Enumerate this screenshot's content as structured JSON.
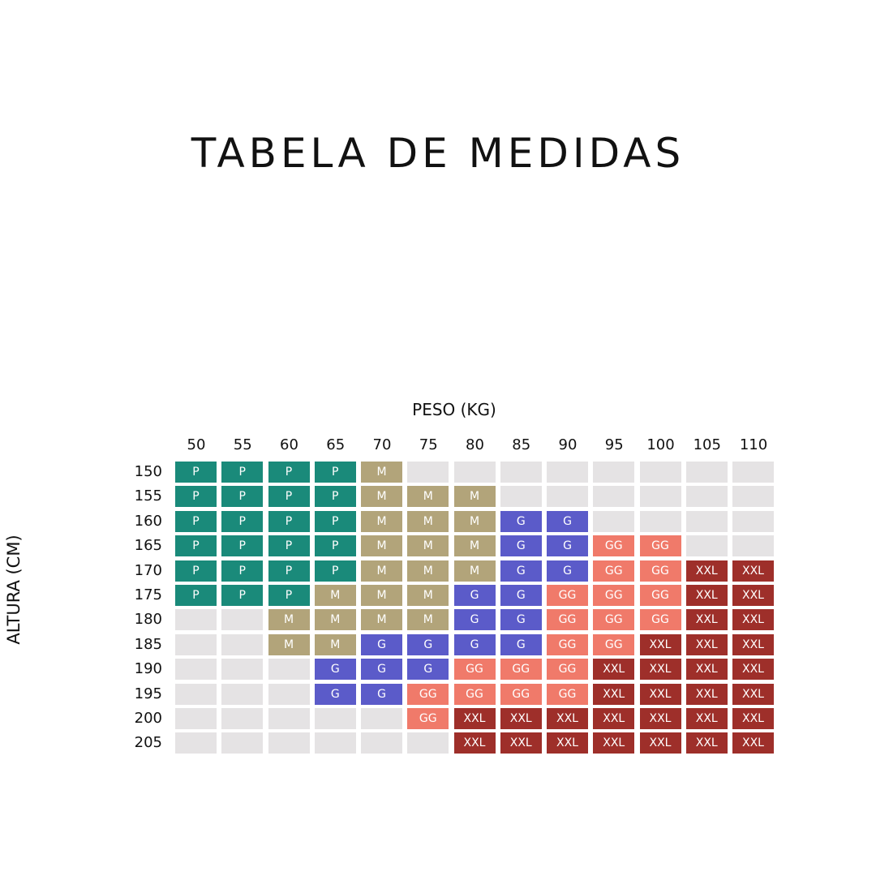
{
  "title": "TABELA DE MEDIDAS",
  "chart_data": {
    "type": "table",
    "xlabel": "PESO (KG)",
    "ylabel": "ALTURA (CM)",
    "x": [
      "50",
      "55",
      "60",
      "65",
      "70",
      "75",
      "80",
      "85",
      "90",
      "95",
      "100",
      "105",
      "110"
    ],
    "y": [
      "150",
      "155",
      "160",
      "165",
      "170",
      "175",
      "180",
      "185",
      "190",
      "195",
      "200",
      "205"
    ],
    "cells": [
      [
        "P",
        "P",
        "P",
        "P",
        "M",
        "",
        "",
        "",
        "",
        "",
        "",
        "",
        ""
      ],
      [
        "P",
        "P",
        "P",
        "P",
        "M",
        "M",
        "M",
        "",
        "",
        "",
        "",
        "",
        ""
      ],
      [
        "P",
        "P",
        "P",
        "P",
        "M",
        "M",
        "M",
        "G",
        "G",
        "",
        "",
        "",
        ""
      ],
      [
        "P",
        "P",
        "P",
        "P",
        "M",
        "M",
        "M",
        "G",
        "G",
        "GG",
        "GG",
        "",
        ""
      ],
      [
        "P",
        "P",
        "P",
        "P",
        "M",
        "M",
        "M",
        "G",
        "G",
        "GG",
        "GG",
        "XXL",
        "XXL"
      ],
      [
        "P",
        "P",
        "P",
        "M",
        "M",
        "M",
        "G",
        "G",
        "GG",
        "GG",
        "GG",
        "XXL",
        "XXL"
      ],
      [
        "",
        "",
        "M",
        "M",
        "M",
        "M",
        "G",
        "G",
        "GG",
        "GG",
        "GG",
        "XXL",
        "XXL"
      ],
      [
        "",
        "",
        "M",
        "M",
        "G",
        "G",
        "G",
        "G",
        "GG",
        "GG",
        "XXL",
        "XXL",
        "XXL"
      ],
      [
        "",
        "",
        "",
        "G",
        "G",
        "G",
        "GG",
        "GG",
        "GG",
        "XXL",
        "XXL",
        "XXL",
        "XXL"
      ],
      [
        "",
        "",
        "",
        "G",
        "G",
        "GG",
        "GG",
        "GG",
        "GG",
        "XXL",
        "XXL",
        "XXL",
        "XXL"
      ],
      [
        "",
        "",
        "",
        "",
        "",
        "GG",
        "XXL",
        "XXL",
        "XXL",
        "XXL",
        "XXL",
        "XXL",
        "XXL"
      ],
      [
        "",
        "",
        "",
        "",
        "",
        "",
        "XXL",
        "XXL",
        "XXL",
        "XXL",
        "XXL",
        "XXL",
        "XXL"
      ]
    ],
    "colors": {
      "P": "#1a8a7a",
      "M": "#b2a47a",
      "G": "#5b5bc9",
      "GG": "#f07a6a",
      "XXL": "#9e2f2a",
      "empty": "#e5e3e4"
    }
  }
}
